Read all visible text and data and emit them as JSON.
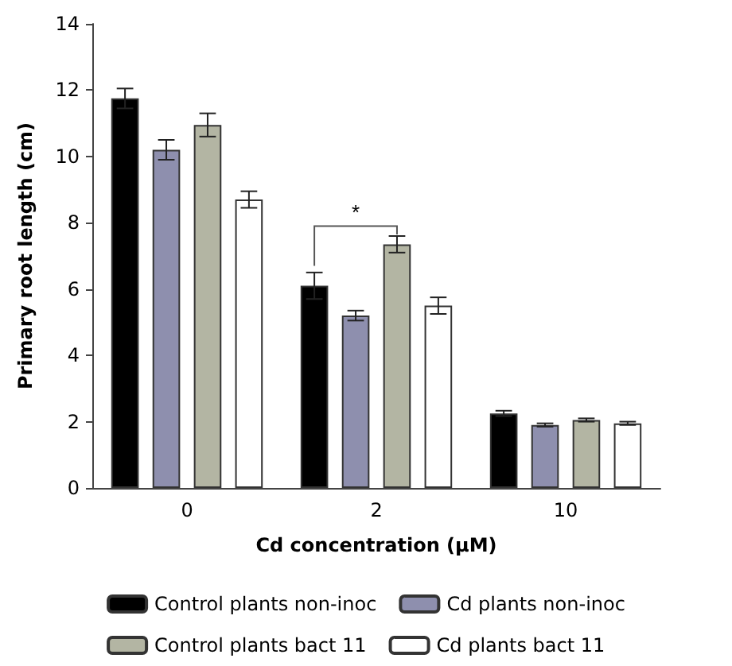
{
  "chart_data": {
    "type": "bar",
    "xlabel": "Cd concentration (µM)",
    "ylabel": "Primary root length (cm)",
    "categories": [
      "0",
      "2",
      "10"
    ],
    "series": [
      {
        "name": "Control plants non-inoc",
        "color": "#000000",
        "values": [
          11.75,
          6.1,
          2.25
        ],
        "errors": [
          0.3,
          0.4,
          0.08
        ]
      },
      {
        "name": "Cd plants non-inoc",
        "color": "#8e8fae",
        "values": [
          10.2,
          5.2,
          1.9
        ],
        "errors": [
          0.3,
          0.15,
          0.05
        ]
      },
      {
        "name": "Control plants bact 11",
        "color": "#b3b5a3",
        "values": [
          10.95,
          7.35,
          2.05
        ],
        "errors": [
          0.35,
          0.25,
          0.05
        ]
      },
      {
        "name": "Cd plants bact 11",
        "color": "#ffffff",
        "values": [
          8.7,
          5.5,
          1.95
        ],
        "errors": [
          0.25,
          0.25,
          0.05
        ]
      }
    ],
    "ylim": [
      0,
      14
    ],
    "yticks": [
      0,
      2,
      4,
      6,
      8,
      10,
      12,
      14
    ],
    "grid": false,
    "legend": "bottom",
    "annotations": [
      "*"
    ]
  }
}
